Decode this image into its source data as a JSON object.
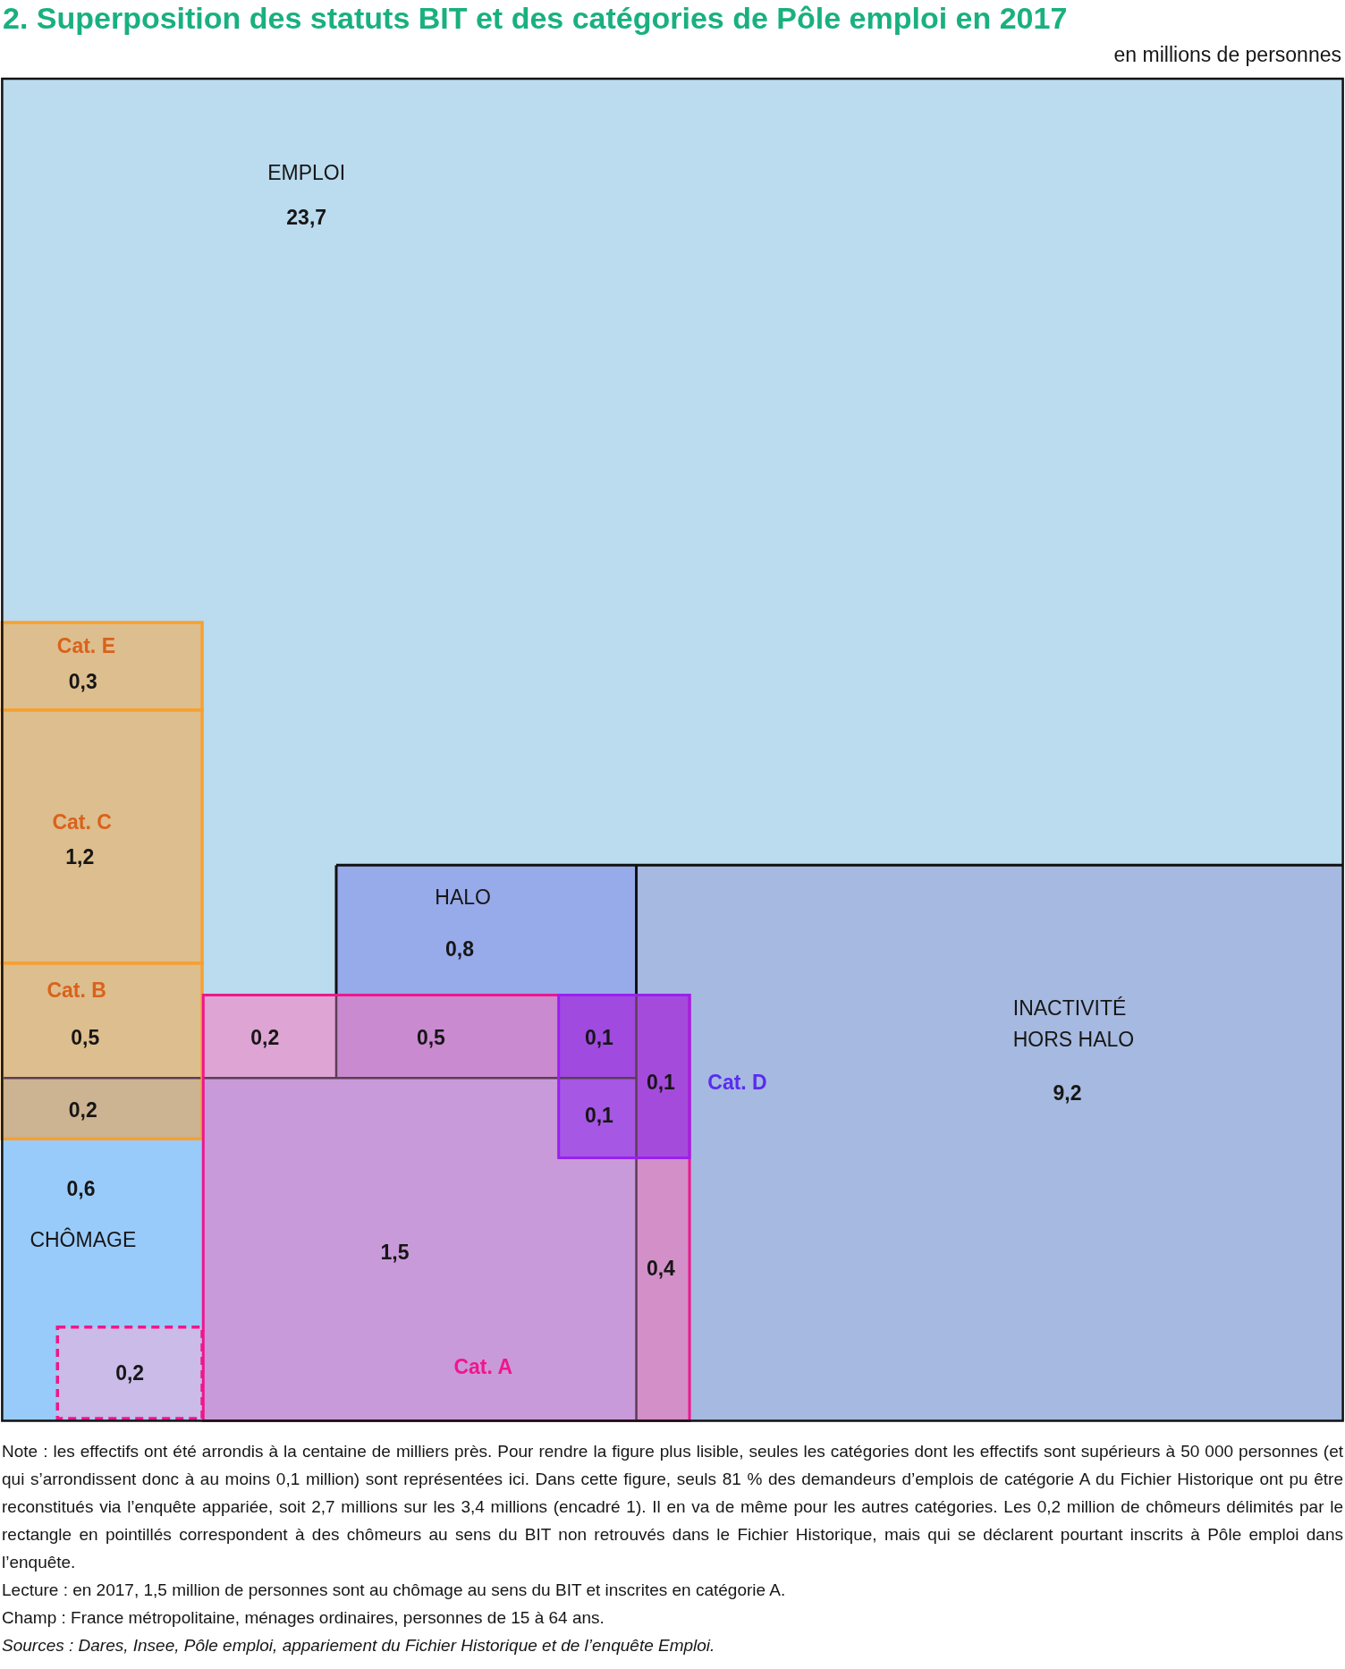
{
  "chart_data": {
    "type": "other",
    "title": "2. Superposition des statuts BIT et des catégories de Pôle emploi en 2017",
    "subtitle": "en millions de personnes",
    "categories": [
      "EMPLOI",
      "Cat. E",
      "Cat. C",
      "HALO",
      "Cat. B",
      null,
      null,
      null,
      null,
      "INACTIVITÉ HORS HALO",
      null,
      null,
      "CHÔMAGE",
      "Cat. A",
      null,
      null
    ],
    "values": [
      23.7,
      0.3,
      1.2,
      0.8,
      0.5,
      0.2,
      0.5,
      0.1,
      0.1,
      9.2,
      0.2,
      0.1,
      0.6,
      1.5,
      0.4,
      0.2
    ],
    "value_labels": [
      "23,7",
      "0,3",
      "1,2",
      "0,8",
      "0,5",
      "0,2",
      "0,5",
      "0,1",
      "0,1",
      "9,2",
      "0,2",
      "0,1",
      "0,6",
      "1,5",
      "0,4",
      "0,2"
    ],
    "colors": [
      "#bbdbee",
      "#ddbe8e",
      "#ddbe8e",
      "#97aaea",
      "#ddbe8e",
      "#dda4d4",
      "#c98ad0",
      "#a04ae0",
      "#a54bdb",
      "#a6b9e0",
      "#ccb391",
      "#a657e3",
      "#99cbfa",
      "#c99ad9",
      "#d38fc8",
      "#cabbe8"
    ],
    "annotations": [
      "Cat. D",
      "Note : les effectifs ont été arrondis à la centaine de milliers près. Pour rendre la figure plus lisible, seules les catégories dont les effectifs sont supérieurs à 50 000 personnes (et qui s’arrondissent donc à au moins 0,1 million) sont représentées ici. Dans cette figure, seuls 81 % des demandeurs d’emplois de catégorie A du Fichier Historique ont pu être reconstitués via l’enquête appariée, soit 2,7 millions sur les 3,4 millions (encadré 1). Il en va de même pour les autres catégories. Les 0,2 million de chômeurs délimités par le rectangle en pointillés correspondent à des chômeurs au sens du BIT non retrouvés dans le Fichier Historique, mais qui se déclarent pourtant inscrits à Pôle emploi dans l’enquête.",
      "Lecture : en 2017, 1,5 million de personnes sont au chômage au sens du BIT et inscrites en catégorie A.",
      "Champ : France métropolitaine, ménages ordinaires, personnes de 15 à 64 ans.",
      "Sources : Dares, Insee, Pôle emploi, appariement du Fichier Historique et de l’enquête Emploi."
    ]
  }
}
